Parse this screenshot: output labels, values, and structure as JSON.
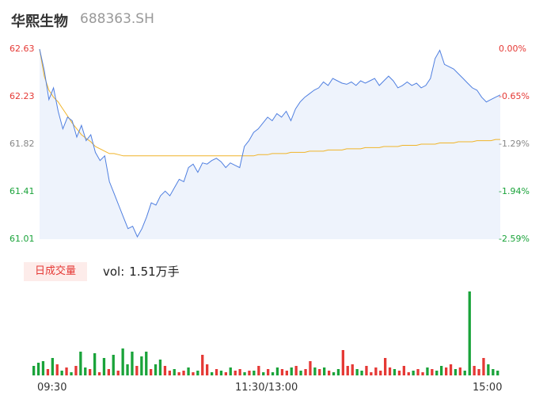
{
  "header": {
    "name": "华熙生物",
    "code": "688363.SH"
  },
  "volume_panel": {
    "badge": "日成交量",
    "label": "vol:",
    "value": "1.51万手"
  },
  "colors": {
    "price_line": "#4f7fe0",
    "avg_line": "#f0b429",
    "up": "#e53935",
    "down": "#1aa33a",
    "area": "#eef3fc"
  },
  "chart_data": [
    {
      "type": "line",
      "series": [
        {
          "values": [
            62.63,
            62.45,
            62.2,
            62.3,
            62.1,
            61.95,
            62.05,
            62.02,
            61.88,
            61.98,
            61.85,
            61.9,
            61.75,
            61.68,
            61.72,
            61.5,
            61.4,
            61.3,
            61.2,
            61.1,
            61.12,
            61.03,
            61.1,
            61.2,
            61.32,
            61.3,
            61.38,
            61.42,
            61.38,
            61.45,
            61.52,
            61.5,
            61.62,
            61.65,
            61.58,
            61.66,
            61.65,
            61.68,
            61.7,
            61.67,
            61.62,
            61.66,
            61.64,
            61.62,
            61.8,
            61.85,
            61.92,
            61.95,
            62.0,
            62.05,
            62.02,
            62.08,
            62.05,
            62.1,
            62.02,
            62.12,
            62.18,
            62.22,
            62.25,
            62.28,
            62.3,
            62.35,
            62.32,
            62.38,
            62.36,
            62.34,
            62.33,
            62.35,
            62.32,
            62.36,
            62.34,
            62.36,
            62.38,
            62.32,
            62.36,
            62.4,
            62.36,
            62.3,
            62.32,
            62.35,
            62.32,
            62.34,
            62.3,
            62.32,
            62.38,
            62.55,
            62.62,
            62.5,
            62.48,
            62.46,
            62.42,
            62.38,
            62.34,
            62.3,
            62.28,
            62.22,
            62.18,
            62.2,
            62.22,
            62.24
          ]
        },
        {
          "values": [
            62.63,
            62.4,
            62.28,
            62.22,
            62.18,
            62.12,
            62.06,
            62.0,
            61.95,
            61.9,
            61.87,
            61.84,
            61.8,
            61.78,
            61.76,
            61.74,
            61.74,
            61.73,
            61.72,
            61.72,
            61.72,
            61.72,
            61.72,
            61.72,
            61.72,
            61.72,
            61.72,
            61.72,
            61.72,
            61.72,
            61.72,
            61.72,
            61.72,
            61.72,
            61.72,
            61.72,
            61.72,
            61.72,
            61.72,
            61.72,
            61.72,
            61.72,
            61.72,
            61.72,
            61.72,
            61.72,
            61.72,
            61.73,
            61.73,
            61.73,
            61.74,
            61.74,
            61.74,
            61.74,
            61.75,
            61.75,
            61.75,
            61.75,
            61.76,
            61.76,
            61.76,
            61.76,
            61.77,
            61.77,
            61.77,
            61.77,
            61.78,
            61.78,
            61.78,
            61.78,
            61.79,
            61.79,
            61.79,
            61.79,
            61.8,
            61.8,
            61.8,
            61.8,
            61.81,
            61.81,
            61.81,
            61.81,
            61.82,
            61.82,
            61.82,
            61.82,
            61.83,
            61.83,
            61.83,
            61.83,
            61.84,
            61.84,
            61.84,
            61.84,
            61.85,
            61.85,
            61.85,
            61.85,
            61.86,
            61.86
          ]
        }
      ],
      "y_ticks": [
        "62.63",
        "62.23",
        "61.82",
        "61.41",
        "61.01"
      ],
      "y_pct_ticks": [
        "0.00%",
        "-0.65%",
        "-1.29%",
        "-1.94%",
        "-2.59%"
      ],
      "ylim": [
        61.01,
        62.63
      ],
      "x_ticks": [
        "09:30",
        "11:30/13:00",
        "15:00"
      ]
    },
    {
      "type": "bar",
      "values": [
        12,
        16,
        18,
        8,
        22,
        14,
        6,
        10,
        4,
        12,
        30,
        10,
        8,
        28,
        4,
        22,
        8,
        26,
        6,
        34,
        14,
        30,
        12,
        24,
        30,
        8,
        14,
        20,
        12,
        6,
        8,
        4,
        6,
        10,
        4,
        6,
        26,
        14,
        4,
        8,
        6,
        4,
        10,
        6,
        8,
        4,
        6,
        6,
        12,
        4,
        8,
        4,
        10,
        8,
        6,
        10,
        12,
        6,
        8,
        18,
        10,
        8,
        10,
        6,
        4,
        8,
        32,
        12,
        14,
        8,
        6,
        12,
        4,
        10,
        6,
        22,
        10,
        8,
        6,
        12,
        4,
        6,
        8,
        4,
        10,
        8,
        6,
        12,
        10,
        14,
        8,
        10,
        6,
        106,
        12,
        8,
        22,
        14,
        8,
        6
      ],
      "colors": [
        "d",
        "d",
        "d",
        "u",
        "d",
        "u",
        "d",
        "u",
        "d",
        "u",
        "d",
        "d",
        "u",
        "d",
        "u",
        "d",
        "u",
        "d",
        "u",
        "d",
        "d",
        "d",
        "u",
        "d",
        "d",
        "u",
        "d",
        "d",
        "u",
        "u",
        "d",
        "u",
        "u",
        "d",
        "u",
        "d",
        "u",
        "u",
        "d",
        "u",
        "d",
        "u",
        "d",
        "u",
        "u",
        "d",
        "u",
        "d",
        "u",
        "d",
        "u",
        "d",
        "d",
        "u",
        "u",
        "d",
        "u",
        "d",
        "u",
        "u",
        "d",
        "u",
        "d",
        "u",
        "d",
        "d",
        "u",
        "u",
        "u",
        "d",
        "d",
        "u",
        "u",
        "u",
        "u",
        "u",
        "u",
        "d",
        "u",
        "u",
        "u",
        "d",
        "u",
        "u",
        "d",
        "u",
        "d",
        "d",
        "u",
        "u",
        "d",
        "u",
        "d",
        "d",
        "u",
        "u",
        "u",
        "d",
        "d",
        "d"
      ]
    }
  ]
}
